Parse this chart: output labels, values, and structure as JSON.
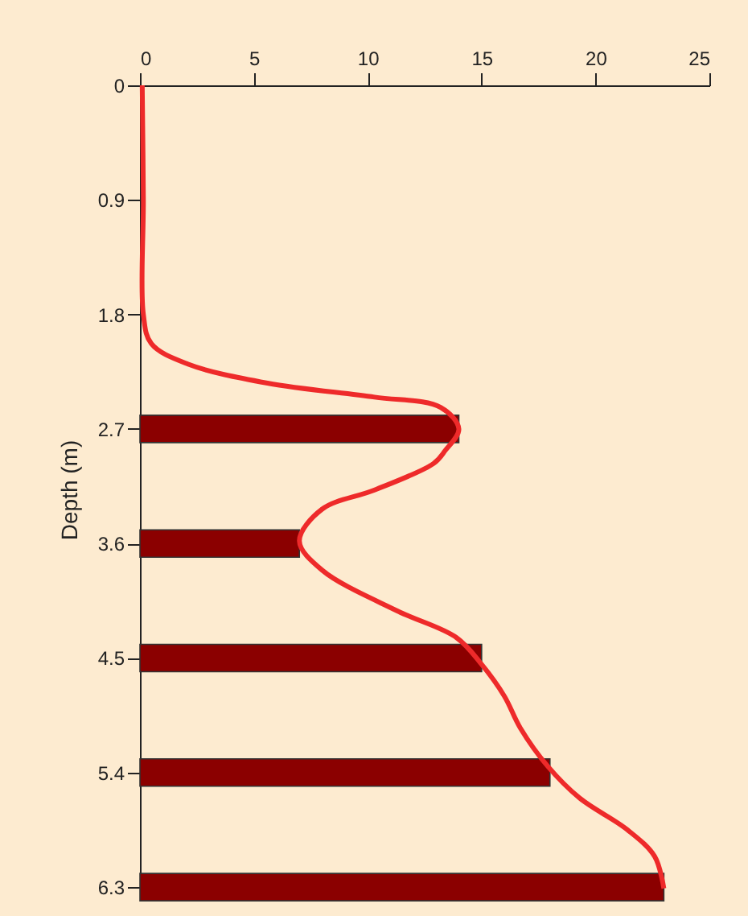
{
  "chart_data": {
    "type": "bar",
    "orientation": "horizontal",
    "ylabel": "Depth (m)",
    "xlim": [
      0,
      25
    ],
    "xticks": [
      0,
      5,
      10,
      15,
      20,
      25
    ],
    "ylim": [
      6.35,
      0
    ],
    "yticks": [
      0,
      0.9,
      1.8,
      2.7,
      3.6,
      4.5,
      5.4,
      6.3
    ],
    "grid": false,
    "legend": false,
    "series": [
      {
        "color": "#8b0000",
        "x": [
          2.7,
          3.6,
          4.5,
          5.4,
          6.3
        ],
        "values": [
          14,
          7,
          15,
          18,
          23
        ]
      },
      {
        "type": "line",
        "color": "#ee2a2a",
        "line_style": "solid",
        "marker": "none",
        "x": [
          0,
          0.9,
          1.8,
          2.03,
          2.19,
          2.34,
          2.45,
          2.53,
          2.7,
          2.87,
          2.97,
          3.18,
          3.33,
          3.58,
          3.81,
          4.13,
          4.34,
          4.55,
          4.8,
          5.05,
          5.35,
          5.6,
          5.85,
          6.06,
          6.31
        ],
        "values": [
          0.1,
          0.15,
          0.15,
          0.5,
          2.1,
          5.6,
          10.3,
          13.2,
          14.0,
          13.4,
          12.9,
          10.3,
          8.0,
          7.0,
          8.0,
          11.3,
          13.9,
          15.0,
          16.0,
          16.7,
          17.9,
          19.3,
          21.4,
          22.6,
          23.0
        ]
      }
    ]
  }
}
